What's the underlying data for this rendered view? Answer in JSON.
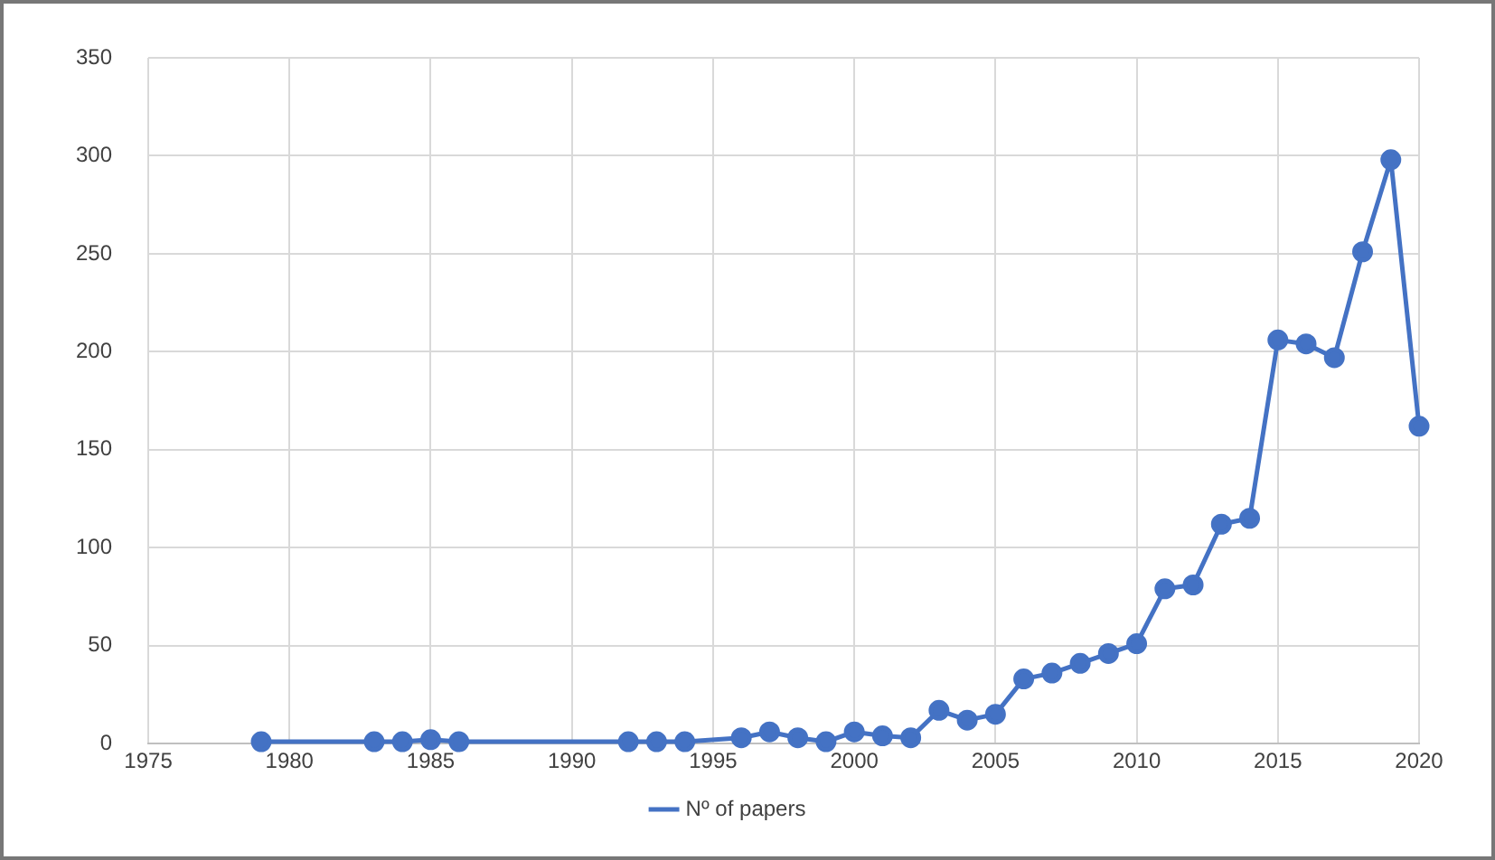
{
  "chart_data": {
    "type": "line",
    "x": [
      1979,
      1983,
      1984,
      1985,
      1986,
      1992,
      1993,
      1994,
      1996,
      1997,
      1998,
      1999,
      2000,
      2001,
      2002,
      2003,
      2004,
      2005,
      2006,
      2007,
      2008,
      2009,
      2010,
      2011,
      2012,
      2013,
      2014,
      2015,
      2016,
      2017,
      2018,
      2019,
      2020
    ],
    "series": [
      {
        "name": "Nº of papers",
        "color": "#4472c4",
        "values": [
          1,
          1,
          1,
          2,
          1,
          1,
          1,
          1,
          3,
          6,
          3,
          1,
          6,
          4,
          3,
          17,
          12,
          15,
          33,
          36,
          41,
          46,
          51,
          79,
          81,
          112,
          115,
          206,
          204,
          197,
          251,
          298,
          162
        ]
      }
    ],
    "xlim": [
      1975,
      2020
    ],
    "xticks": [
      1975,
      1980,
      1985,
      1990,
      1995,
      2000,
      2005,
      2010,
      2015,
      2020
    ],
    "ylim": [
      0,
      350
    ],
    "yticks": [
      0,
      50,
      100,
      150,
      200,
      250,
      300,
      350
    ],
    "grid": true,
    "legend": "bottom",
    "marker": "circle",
    "line_style": "solid"
  }
}
